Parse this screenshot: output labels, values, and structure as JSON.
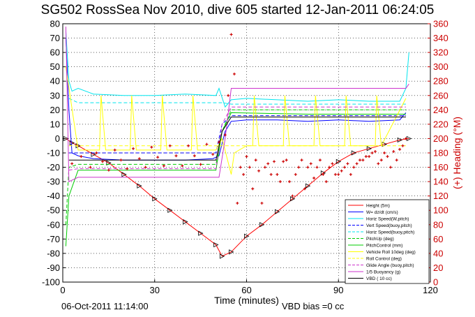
{
  "figure": {
    "title": "SG502 RossSea Nov 2010, dive 605 started 12-Jan-2011 06:24:05",
    "timestamp": "06-Oct-2011 11:14:00",
    "vbd_bias": "VBD bias =0 cc",
    "colors": {
      "height": "#ff0000",
      "heading": "#cc0000",
      "w": "#0000ff",
      "horiz_speed": "#00e5ee",
      "pitch": "#00cc00",
      "yellow": "#ffff00",
      "buoyancy": "#cc33cc",
      "vbd": "#000000"
    }
  },
  "chart_data": {
    "type": "line",
    "title": "SG502 RossSea Nov 2010, dive 605 started 12-Jan-2011 06:24:05",
    "xlabel": "Time (minutes)",
    "ylabel": "",
    "y2label": "(+) Heading (°M)",
    "xlim": [
      0,
      120
    ],
    "ylim": [
      -100,
      80
    ],
    "y2lim": [
      0,
      360
    ],
    "xticks": [
      "0",
      "30",
      "60",
      "90",
      "120"
    ],
    "yticks": [
      "80",
      "70",
      "60",
      "50",
      "40",
      "30",
      "20",
      "10",
      "0",
      "-10",
      "-20",
      "-30",
      "-40",
      "-50",
      "-60",
      "-70",
      "-80",
      "-90",
      "-100"
    ],
    "y2ticks": [
      "360",
      "340",
      "320",
      "300",
      "280",
      "260",
      "240",
      "220",
      "200",
      "180",
      "160",
      "140",
      "120",
      "100",
      "80",
      "60",
      "40",
      "20",
      "0"
    ],
    "grid": true,
    "legend_position": "bottom-right",
    "legend": [
      {
        "label": "Height (5m)",
        "color": "#ff0000",
        "dash": "solid"
      },
      {
        "label": "W= dz/dt (cm/s)",
        "color": "#0000ff",
        "dash": "solid"
      },
      {
        "label": "Horiz Speed(W,pitch)",
        "color": "#00e5ee",
        "dash": "solid"
      },
      {
        "label": "Vert Speed(buoy,pitch)",
        "color": "#0000ff",
        "dash": "dashed"
      },
      {
        "label": "Horiz Speed(buoy,pitch)",
        "color": "#00e5ee",
        "dash": "dashed"
      },
      {
        "label": "PitchUp (deg)",
        "color": "#00cc00",
        "dash": "dashed"
      },
      {
        "label": "PitchControl (mm)",
        "color": "#00cc00",
        "dash": "solid"
      },
      {
        "label": "Vehicle Roll 10deg (deg)",
        "color": "#ffff00",
        "dash": "solid"
      },
      {
        "label": "Roll Control (deg)",
        "color": "#ffff00",
        "dash": "dashed"
      },
      {
        "label": "Glide Angle (buoy,pitch)",
        "color": "#cc33cc",
        "dash": "dashed"
      },
      {
        "label": "1/5 Buoyancy (g)",
        "color": "#cc33cc",
        "dash": "solid"
      },
      {
        "label": "VBD ( 10 cc)",
        "color": "#000000",
        "dash": "solid"
      }
    ],
    "series": [
      {
        "key": "height",
        "color": "#ff0000",
        "dash": "solid",
        "markers": "triangle",
        "x": [
          1,
          3,
          5,
          10,
          15,
          20,
          25,
          30,
          35,
          40,
          45,
          50,
          52,
          55,
          60,
          65,
          70,
          75,
          80,
          85,
          90,
          95,
          100,
          105,
          110,
          113
        ],
        "y": [
          0,
          -3,
          -5,
          -11,
          -17,
          -25,
          -33,
          -42,
          -50,
          -58,
          -66,
          -74,
          -82,
          -79,
          -68,
          -60,
          -51,
          -42,
          -33,
          -24,
          -16,
          -10,
          -7,
          -4,
          -1,
          0
        ]
      },
      {
        "key": "w",
        "color": "#0000ff",
        "dash": "solid",
        "x": [
          1,
          2,
          3,
          5,
          10,
          20,
          30,
          40,
          49,
          51,
          53,
          55,
          60,
          70,
          80,
          90,
          100,
          110,
          112
        ],
        "y": [
          70,
          20,
          -10,
          -12,
          -14,
          -15,
          -15,
          -15,
          -14,
          -12,
          5,
          12,
          13,
          13,
          12,
          13,
          12,
          13,
          18
        ]
      },
      {
        "key": "horiz_speed",
        "color": "#00e5ee",
        "dash": "solid",
        "x": [
          1,
          2,
          3,
          5,
          10,
          20,
          30,
          40,
          50,
          51,
          53,
          55,
          60,
          70,
          80,
          90,
          100,
          110,
          112,
          113
        ],
        "y": [
          75,
          40,
          33,
          35,
          31,
          30,
          30,
          31,
          30,
          35,
          22,
          27,
          28,
          27,
          26,
          27,
          26,
          26,
          35,
          60
        ]
      },
      {
        "key": "vert_speed_buoy",
        "color": "#0000ff",
        "dash": "dashed",
        "x": [
          2,
          5,
          50,
          52,
          55,
          112
        ],
        "y": [
          -10,
          -10,
          -10,
          10,
          16,
          16
        ]
      },
      {
        "key": "horiz_speed_buoy",
        "color": "#00e5ee",
        "dash": "dashed",
        "x": [
          2,
          5,
          50,
          52,
          55,
          112
        ],
        "y": [
          28,
          25,
          25,
          25,
          24,
          24
        ]
      },
      {
        "key": "pitch_up",
        "color": "#00cc00",
        "dash": "dashed",
        "x": [
          1,
          2,
          5,
          50,
          52,
          55,
          112
        ],
        "y": [
          -60,
          -20,
          -18,
          -18,
          5,
          20,
          20
        ]
      },
      {
        "key": "pitch_control",
        "color": "#00cc00",
        "dash": "solid",
        "x": [
          1,
          2,
          5,
          20,
          40,
          50,
          52,
          55,
          80,
          112
        ],
        "y": [
          -75,
          -40,
          -22,
          -22,
          -22,
          -22,
          5,
          18,
          17,
          17
        ]
      },
      {
        "key": "vehicle_roll",
        "color": "#ffff00",
        "dash": "solid",
        "x": [
          1,
          5,
          10,
          12,
          12.5,
          14,
          20,
          22,
          22.5,
          24,
          30,
          32,
          32.5,
          34,
          40,
          42,
          42.5,
          44,
          50,
          52,
          55,
          56,
          60,
          62,
          62.5,
          64,
          70,
          72,
          72.5,
          74,
          80,
          82,
          82.5,
          84,
          90,
          92,
          92.5,
          94,
          100,
          102,
          102.5,
          104,
          112
        ],
        "y": [
          50,
          -8,
          -8,
          -8,
          30,
          -8,
          -8,
          -8,
          30,
          -8,
          -8,
          -8,
          30,
          -8,
          -8,
          -8,
          30,
          -8,
          -8,
          0,
          -25,
          -10,
          -5,
          -5,
          30,
          -5,
          -5,
          -5,
          30,
          -5,
          -5,
          -5,
          30,
          -5,
          -5,
          -5,
          30,
          -5,
          -5,
          -5,
          30,
          -5,
          28
        ]
      },
      {
        "key": "roll_control",
        "color": "#ffff00",
        "dash": "dashed",
        "x": [
          2,
          112
        ],
        "y": [
          -5,
          -5
        ]
      },
      {
        "key": "glide_angle",
        "color": "#cc33cc",
        "dash": "dashed",
        "x": [
          2,
          5,
          50,
          52,
          55,
          112
        ],
        "y": [
          -22,
          -21,
          -21,
          10,
          22,
          22
        ]
      },
      {
        "key": "buoyancy",
        "color": "#cc33cc",
        "dash": "solid",
        "x": [
          1,
          2,
          5,
          50,
          51,
          53,
          55,
          112,
          113
        ],
        "y": [
          78,
          -30,
          -27,
          -27,
          -27,
          0,
          35,
          35,
          38
        ]
      },
      {
        "key": "vbd",
        "color": "#000000",
        "dash": "solid",
        "x": [
          2,
          5,
          50,
          52,
          55,
          112
        ],
        "y": [
          -15,
          -15,
          -15,
          5,
          15,
          15
        ]
      }
    ],
    "heading_points": {
      "color": "#cc0000",
      "x": [
        3,
        6,
        9,
        11,
        13,
        15,
        17,
        19,
        21,
        23,
        25,
        27,
        29,
        31,
        33,
        35,
        37,
        39,
        41,
        43,
        45,
        47,
        49,
        51,
        53,
        54,
        55,
        56,
        57,
        58,
        59,
        60,
        61,
        62,
        63,
        64,
        65,
        66,
        67,
        68,
        69,
        70,
        71,
        72,
        73,
        74,
        75,
        76,
        77,
        78,
        79,
        80,
        81,
        82,
        83,
        84,
        85,
        86,
        87,
        88,
        89,
        90,
        91,
        92,
        93,
        94,
        95,
        96,
        97,
        98,
        99,
        100,
        101,
        102,
        103,
        104,
        105,
        106,
        107,
        108,
        109,
        110,
        111,
        112
      ],
      "y": [
        165,
        175,
        160,
        180,
        168,
        156,
        184,
        170,
        158,
        186,
        172,
        160,
        188,
        174,
        162,
        190,
        176,
        162,
        190,
        176,
        164,
        192,
        178,
        195,
        205,
        260,
        345,
        290,
        110,
        160,
        150,
        175,
        160,
        130,
        170,
        155,
        110,
        160,
        165,
        150,
        168,
        150,
        140,
        168,
        170,
        140,
        120,
        150,
        160,
        170,
        130,
        160,
        165,
        145,
        160,
        170,
        150,
        140,
        160,
        165,
        150,
        150,
        155,
        160,
        165,
        150,
        160,
        165,
        170,
        170,
        175,
        175,
        180,
        182,
        165,
        170,
        180,
        175,
        160,
        182,
        170,
        185,
        190,
        200
      ]
    }
  }
}
